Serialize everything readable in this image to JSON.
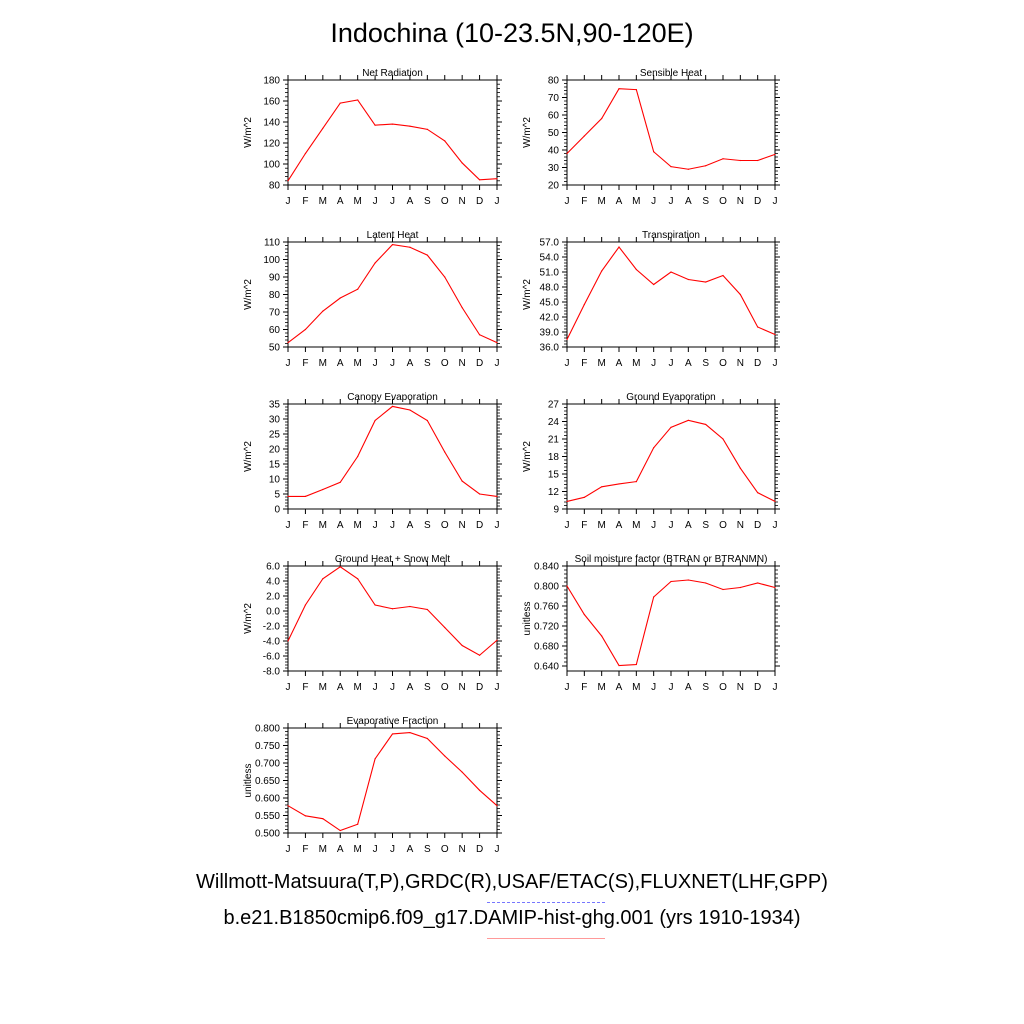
{
  "page": {
    "title": "Indochina (10-23.5N,90-120E)",
    "footer_obs": "Willmott-Matsuura(T,P),GRDC(R),USAF/ETAC(S),FLUXNET(LHF,GPP)",
    "footer_model": "b.e21.B1850cmip6.f09_g17.DAMIP-hist-ghg.001 (yrs 1910-1934)",
    "colors": {
      "model_line": "#ff0000",
      "obs_legend": "#7777ff",
      "model_legend": "#ff9999"
    }
  },
  "chart_data": [
    {
      "type": "line",
      "title": "Net Radiation",
      "ylabel": "W/m^2",
      "categories": [
        "J",
        "F",
        "M",
        "A",
        "M",
        "J",
        "J",
        "A",
        "S",
        "O",
        "N",
        "D",
        "J"
      ],
      "ylim": [
        80,
        180
      ],
      "yticks": [
        "80",
        "100",
        "120",
        "140",
        "160",
        "180"
      ],
      "series": [
        {
          "values": [
            84,
            110,
            134,
            158,
            161,
            137,
            138,
            136,
            133,
            122,
            101,
            85,
            86
          ]
        }
      ]
    },
    {
      "type": "line",
      "title": "Sensible Heat",
      "ylabel": "W/m^2",
      "categories": [
        "J",
        "F",
        "M",
        "A",
        "M",
        "J",
        "J",
        "A",
        "S",
        "O",
        "N",
        "D",
        "J"
      ],
      "ylim": [
        20,
        80
      ],
      "yticks": [
        "20",
        "30",
        "40",
        "50",
        "60",
        "70",
        "80"
      ],
      "series": [
        {
          "values": [
            38,
            48,
            58,
            75,
            74.5,
            39,
            30.5,
            29,
            31,
            35,
            34,
            34,
            37.5
          ]
        }
      ]
    },
    {
      "type": "line",
      "title": "Latent Heat",
      "ylabel": "W/m^2",
      "categories": [
        "J",
        "F",
        "M",
        "A",
        "M",
        "J",
        "J",
        "A",
        "S",
        "O",
        "N",
        "D",
        "J"
      ],
      "ylim": [
        50,
        110
      ],
      "yticks": [
        "50",
        "60",
        "70",
        "80",
        "90",
        "100",
        "110"
      ],
      "series": [
        {
          "values": [
            52.5,
            60,
            70.5,
            78,
            83,
            98,
            108.5,
            107,
            102.5,
            90,
            72.5,
            57,
            52.5
          ]
        }
      ]
    },
    {
      "type": "line",
      "title": "Transpiration",
      "ylabel": "W/m^2",
      "categories": [
        "J",
        "F",
        "M",
        "A",
        "M",
        "J",
        "J",
        "A",
        "S",
        "O",
        "N",
        "D",
        "J"
      ],
      "ylim": [
        36,
        57
      ],
      "yticks": [
        "36.0",
        "39.0",
        "42.0",
        "45.0",
        "48.0",
        "51.0",
        "54.0",
        "57.0"
      ],
      "series": [
        {
          "values": [
            37.5,
            44.5,
            51.2,
            56,
            51.5,
            48.5,
            51,
            49.5,
            49,
            50.3,
            46.5,
            40,
            38.5
          ]
        }
      ]
    },
    {
      "type": "line",
      "title": "Canopy Evaporation",
      "ylabel": "W/m^2",
      "categories": [
        "J",
        "F",
        "M",
        "A",
        "M",
        "J",
        "J",
        "A",
        "S",
        "O",
        "N",
        "D",
        "J"
      ],
      "ylim": [
        0,
        35
      ],
      "yticks": [
        "0",
        "5",
        "10",
        "15",
        "20",
        "25",
        "30",
        "35"
      ],
      "series": [
        {
          "values": [
            4.2,
            4.2,
            6.5,
            8.9,
            17.5,
            29.5,
            34.2,
            33,
            29.5,
            19,
            9.3,
            5,
            4.2
          ]
        }
      ]
    },
    {
      "type": "line",
      "title": "Ground Evaporation",
      "ylabel": "W/m^2",
      "categories": [
        "J",
        "F",
        "M",
        "A",
        "M",
        "J",
        "J",
        "A",
        "S",
        "O",
        "N",
        "D",
        "J"
      ],
      "ylim": [
        9,
        27
      ],
      "yticks": [
        "9",
        "12",
        "15",
        "18",
        "21",
        "24",
        "27"
      ],
      "series": [
        {
          "values": [
            10.3,
            11,
            12.8,
            13.3,
            13.7,
            19.5,
            23,
            24.2,
            23.5,
            21,
            16,
            11.8,
            10.3
          ]
        }
      ]
    },
    {
      "type": "line",
      "title": "Ground Heat + Snow Melt",
      "ylabel": "W/m^2",
      "categories": [
        "J",
        "F",
        "M",
        "A",
        "M",
        "J",
        "J",
        "A",
        "S",
        "O",
        "N",
        "D",
        "J"
      ],
      "ylim": [
        -8,
        6
      ],
      "yticks": [
        "-8.0",
        "-6.0",
        "-4.0",
        "-2.0",
        "0.0",
        "2.0",
        "4.0",
        "6.0"
      ],
      "series": [
        {
          "values": [
            -4,
            0.8,
            4.3,
            5.9,
            4.3,
            0.8,
            0.3,
            0.6,
            0.2,
            -2.2,
            -4.6,
            -5.9,
            -3.9
          ]
        }
      ]
    },
    {
      "type": "line",
      "title": "Soil moisture factor (BTRAN or BTRANMN)",
      "ylabel": "unitless",
      "categories": [
        "J",
        "F",
        "M",
        "A",
        "M",
        "J",
        "J",
        "A",
        "S",
        "O",
        "N",
        "D",
        "J"
      ],
      "ylim": [
        0.63,
        0.84
      ],
      "yticks": [
        "0.640",
        "0.680",
        "0.720",
        "0.760",
        "0.800",
        "0.840"
      ],
      "series": [
        {
          "values": [
            0.8,
            0.743,
            0.7,
            0.641,
            0.643,
            0.778,
            0.809,
            0.812,
            0.806,
            0.793,
            0.797,
            0.806,
            0.797
          ]
        }
      ]
    },
    {
      "type": "line",
      "title": "Evaporative Fraction",
      "ylabel": "unitless",
      "categories": [
        "J",
        "F",
        "M",
        "A",
        "M",
        "J",
        "J",
        "A",
        "S",
        "O",
        "N",
        "D",
        "J"
      ],
      "ylim": [
        0.5,
        0.8
      ],
      "yticks": [
        "0.500",
        "0.550",
        "0.600",
        "0.650",
        "0.700",
        "0.750",
        "0.800"
      ],
      "series": [
        {
          "values": [
            0.578,
            0.549,
            0.541,
            0.507,
            0.525,
            0.712,
            0.783,
            0.787,
            0.77,
            0.72,
            0.674,
            0.622,
            0.578
          ]
        }
      ]
    }
  ]
}
